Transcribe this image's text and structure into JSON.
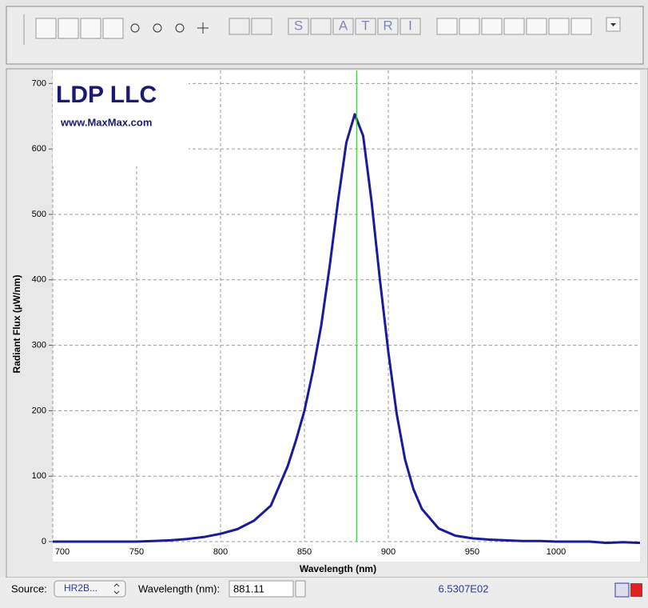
{
  "toolbar": {
    "text_buttons": [
      "S",
      "A",
      "T",
      "R",
      "I"
    ]
  },
  "chart_data": {
    "type": "line",
    "logo": {
      "title": "LDP LLC",
      "subtitle": "www.MaxMax.com"
    },
    "x_label": "Wavelength (nm)",
    "y_label": "Radiant Flux (µW/nm)",
    "x": [
      700,
      710,
      720,
      730,
      740,
      750,
      760,
      770,
      780,
      790,
      800,
      810,
      820,
      830,
      840,
      845,
      850,
      855,
      860,
      865,
      870,
      875,
      880,
      885,
      890,
      895,
      900,
      905,
      910,
      915,
      920,
      930,
      940,
      950,
      960,
      970,
      980,
      990,
      1000,
      1010,
      1020,
      1030,
      1040,
      1050
    ],
    "values": [
      0,
      0,
      0,
      0,
      0,
      0,
      1,
      2,
      4,
      7,
      12,
      19,
      32,
      55,
      115,
      155,
      200,
      260,
      330,
      420,
      520,
      610,
      653,
      620,
      520,
      400,
      290,
      195,
      125,
      80,
      50,
      20,
      9,
      5,
      3,
      2,
      1,
      1,
      0,
      0,
      0,
      -2,
      -1,
      -2
    ],
    "color": "#1a1a9c",
    "xlim": [
      700,
      1050
    ],
    "xticks": [
      700,
      750,
      800,
      850,
      900,
      950,
      1000
    ],
    "ylim": [
      0,
      720
    ],
    "yticks": [
      0,
      100,
      200,
      300,
      400,
      500,
      600,
      700
    ],
    "grid": true,
    "marker": {
      "x": 881.11,
      "value": 653.07,
      "value_label": "6.5307E02",
      "color": "#3ccf3c"
    }
  },
  "status_bar": {
    "source_label": "Source:",
    "source_value": "HR2B...",
    "wavelength_label": "Wavelength (nm):"
  }
}
